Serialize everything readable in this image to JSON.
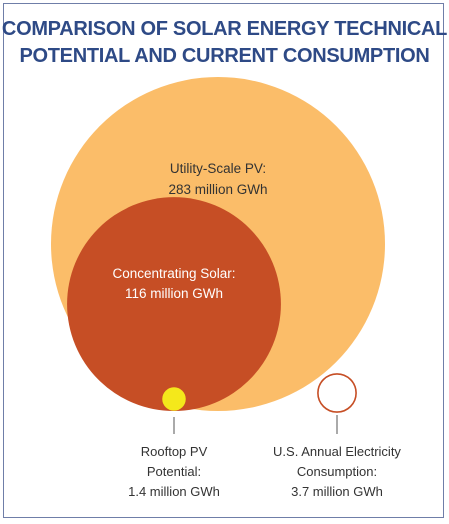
{
  "chart_data": {
    "type": "bubble",
    "title_lines": [
      "COMPARISON OF SOLAR ENERGY TECHNICAL",
      "POTENTIAL AND CURRENT CONSUMPTION"
    ],
    "unit": "million GWh",
    "bubbles": [
      {
        "lines": [
          "Utility-Scale PV:",
          "283 million GWh"
        ],
        "value": 283,
        "color": "#fbbd69",
        "style": "filled"
      },
      {
        "lines": [
          "Concentrating Solar:",
          "116 million GWh"
        ],
        "value": 116,
        "color": "#c64e25",
        "style": "filled"
      },
      {
        "lines": [
          "Rooftop PV",
          "Potential:",
          "1.4 million GWh"
        ],
        "value": 1.4,
        "color": "#f4e81b",
        "style": "filled"
      },
      {
        "lines": [
          "U.S. Annual Electricity",
          "Consumption:",
          "3.7 million GWh"
        ],
        "value": 3.7,
        "color": "#c64e25",
        "style": "outline"
      }
    ]
  }
}
